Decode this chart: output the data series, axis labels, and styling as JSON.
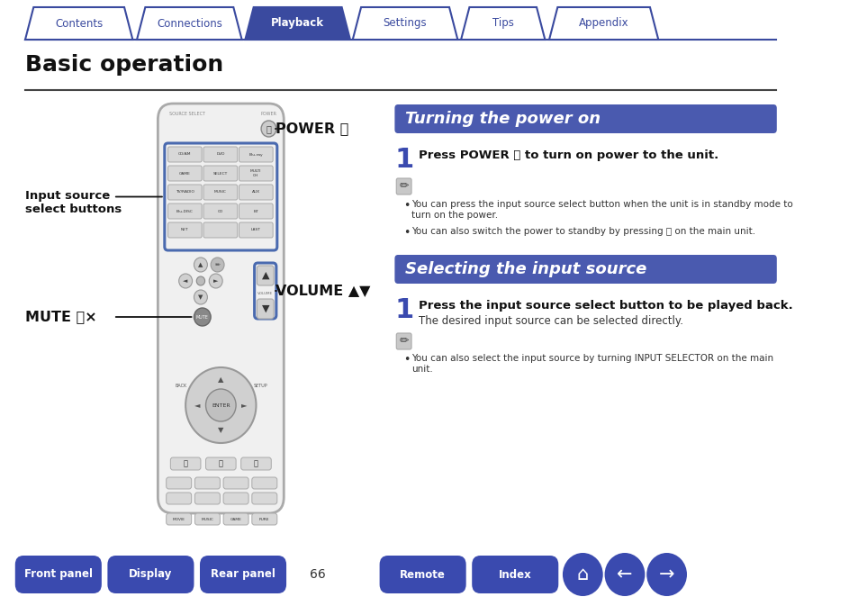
{
  "bg_color": "#ffffff",
  "tab_color_active": "#3a4a9f",
  "tab_color_inactive": "#ffffff",
  "tab_border_color": "#3a4a9f",
  "tab_labels": [
    "Contents",
    "Connections",
    "Playback",
    "Settings",
    "Tips",
    "Appendix"
  ],
  "tab_active_index": 2,
  "title": "Basic operation",
  "title_fontsize": 18,
  "section1_header": "Turning the power on",
  "section2_header": "Selecting the input source",
  "section_header_bg": "#4a5aaf",
  "section_header_color": "#ffffff",
  "step1_power_bold": "Press POWER ⏻ to turn on power to the unit.",
  "step1_select_bold": "Press the input source select button to be played back.",
  "step1_select_normal": "The desired input source can be selected directly.",
  "note1_bullet1": "You can press the input source select button when the unit is in standby mode to\nturn on the power.",
  "note1_bullet2": "You can also switch the power to standby by pressing ⏻ on the main unit.",
  "note2_bullet1": "You can also select the input source by turning INPUT SELECTOR on the main\nunit.",
  "label_power": "POWER ⏻",
  "label_volume": "VOLUME ▲▼",
  "label_mute": "MUTE 🔇×",
  "label_input_line1": "Input source",
  "label_input_line2": "select buttons",
  "page_num": "66",
  "bottom_buttons": [
    "Front panel",
    "Display",
    "Rear panel",
    "Remote",
    "Index"
  ],
  "bottom_btn_color": "#3a4aaf",
  "bottom_btn_text_color": "#ffffff",
  "remote_highlight_color": "#4a6aaf"
}
